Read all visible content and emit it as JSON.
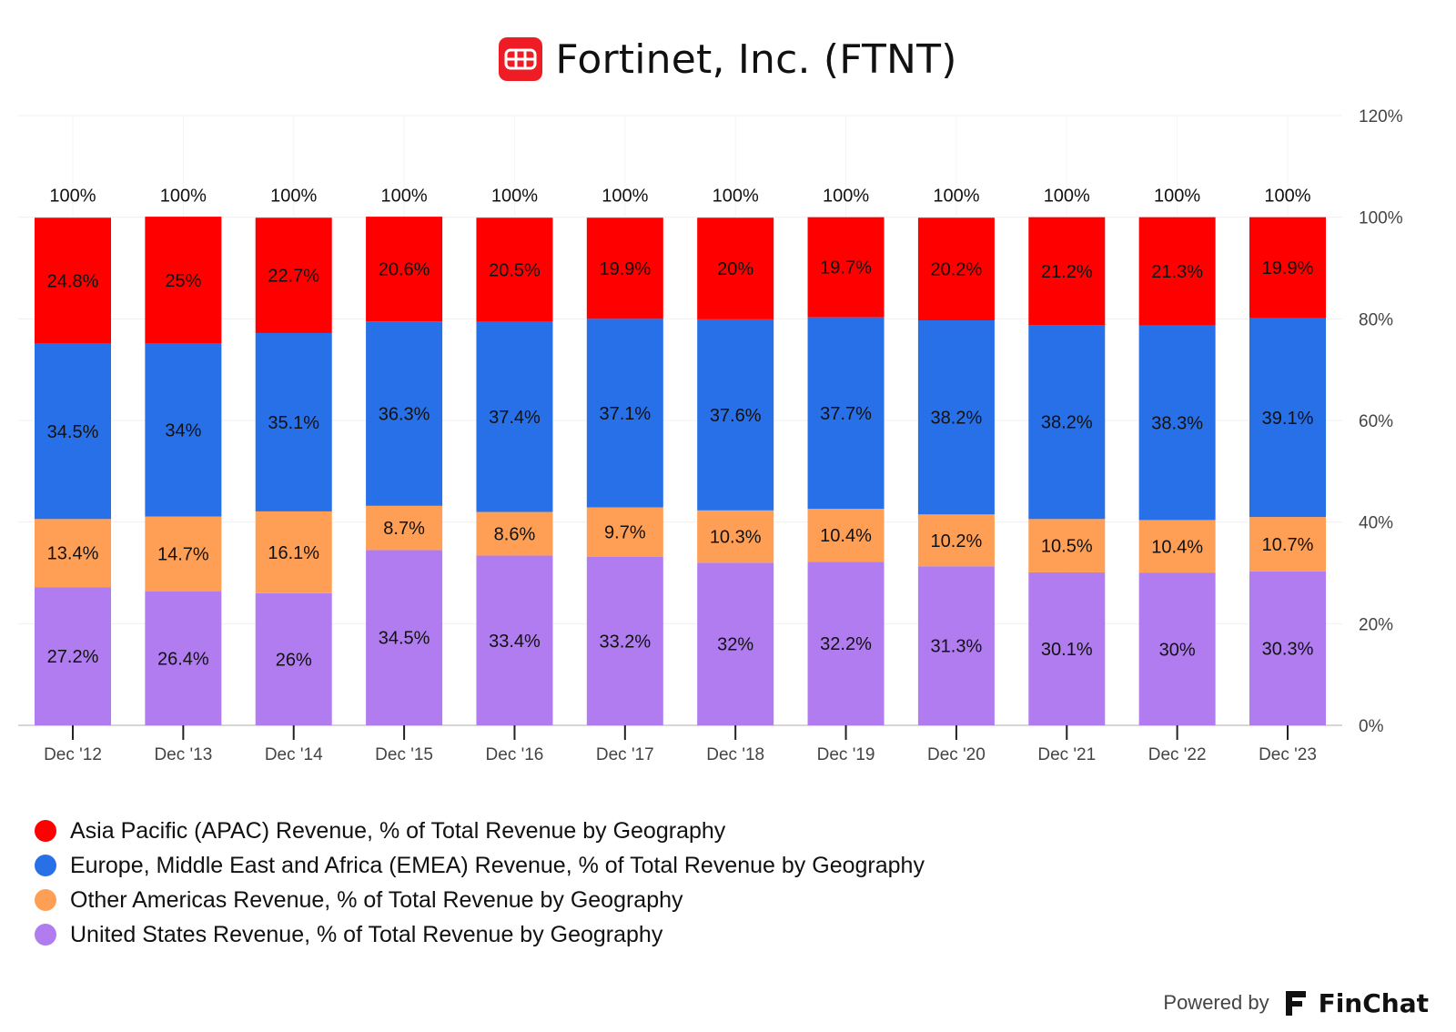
{
  "header": {
    "title": "Fortinet, Inc. (FTNT)",
    "logo_icon": "fortinet-logo-icon",
    "logo_color": "#EE1C24"
  },
  "chart_data": {
    "type": "bar",
    "stacked": true,
    "categories": [
      "Dec '12",
      "Dec '13",
      "Dec '14",
      "Dec '15",
      "Dec '16",
      "Dec '17",
      "Dec '18",
      "Dec '19",
      "Dec '20",
      "Dec '21",
      "Dec '22",
      "Dec '23"
    ],
    "series": [
      {
        "name": "United States Revenue, % of Total Revenue by Geography",
        "color": "#B07CF0",
        "labels": [
          "27.2%",
          "26.4%",
          "26%",
          "34.5%",
          "33.4%",
          "33.2%",
          "32%",
          "32.2%",
          "31.3%",
          "30.1%",
          "30%",
          "30.3%"
        ],
        "values": [
          27.2,
          26.4,
          26,
          34.5,
          33.4,
          33.2,
          32,
          32.2,
          31.3,
          30.1,
          30,
          30.3
        ]
      },
      {
        "name": "Other Americas Revenue, % of Total Revenue by Geography",
        "color": "#FF9F55",
        "labels": [
          "13.4%",
          "14.7%",
          "16.1%",
          "8.7%",
          "8.6%",
          "9.7%",
          "10.3%",
          "10.4%",
          "10.2%",
          "10.5%",
          "10.4%",
          "10.7%"
        ],
        "values": [
          13.4,
          14.7,
          16.1,
          8.7,
          8.6,
          9.7,
          10.3,
          10.4,
          10.2,
          10.5,
          10.4,
          10.7
        ]
      },
      {
        "name": "Europe, Middle East and Africa (EMEA) Revenue, % of Total Revenue by Geography",
        "color": "#2870E8",
        "labels": [
          "34.5%",
          "34%",
          "35.1%",
          "36.3%",
          "37.4%",
          "37.1%",
          "37.6%",
          "37.7%",
          "38.2%",
          "38.2%",
          "38.3%",
          "39.1%"
        ],
        "values": [
          34.5,
          34,
          35.1,
          36.3,
          37.4,
          37.1,
          37.6,
          37.7,
          38.2,
          38.2,
          38.3,
          39.1
        ]
      },
      {
        "name": "Asia Pacific (APAC) Revenue, % of Total Revenue by Geography",
        "color": "#FF0000",
        "labels": [
          "24.8%",
          "25%",
          "22.7%",
          "20.6%",
          "20.5%",
          "19.9%",
          "20%",
          "19.7%",
          "20.2%",
          "21.2%",
          "21.3%",
          "19.9%"
        ],
        "values": [
          24.8,
          25,
          22.7,
          20.6,
          20.5,
          19.9,
          20,
          19.7,
          20.2,
          21.2,
          21.3,
          19.9
        ]
      }
    ],
    "totals": [
      "100%",
      "100%",
      "100%",
      "100%",
      "100%",
      "100%",
      "100%",
      "100%",
      "100%",
      "100%",
      "100%",
      "100%"
    ],
    "total_values": [
      100,
      100,
      100,
      100,
      100,
      100,
      100,
      100,
      100,
      100,
      100,
      100
    ],
    "ylim": [
      0,
      120
    ],
    "yticks": [
      0,
      20,
      40,
      60,
      80,
      100,
      120
    ],
    "ytick_labels": [
      "0%",
      "20%",
      "40%",
      "60%",
      "80%",
      "100%",
      "120%"
    ],
    "grid": true,
    "y_axis_side": "right",
    "legend_position": "bottom-left"
  },
  "legend": {
    "items": [
      {
        "label": "Asia Pacific (APAC) Revenue, % of Total Revenue by Geography",
        "color": "#FF0000"
      },
      {
        "label": "Europe, Middle East and Africa (EMEA) Revenue, % of Total Revenue by Geography",
        "color": "#2870E8"
      },
      {
        "label": "Other Americas Revenue, % of Total Revenue by Geography",
        "color": "#FF9F55"
      },
      {
        "label": "United States Revenue, % of Total Revenue by Geography",
        "color": "#B07CF0"
      }
    ]
  },
  "footer": {
    "powered_by": "Powered by",
    "brand": "FinChat",
    "brand_icon": "finchat-logo-icon"
  }
}
